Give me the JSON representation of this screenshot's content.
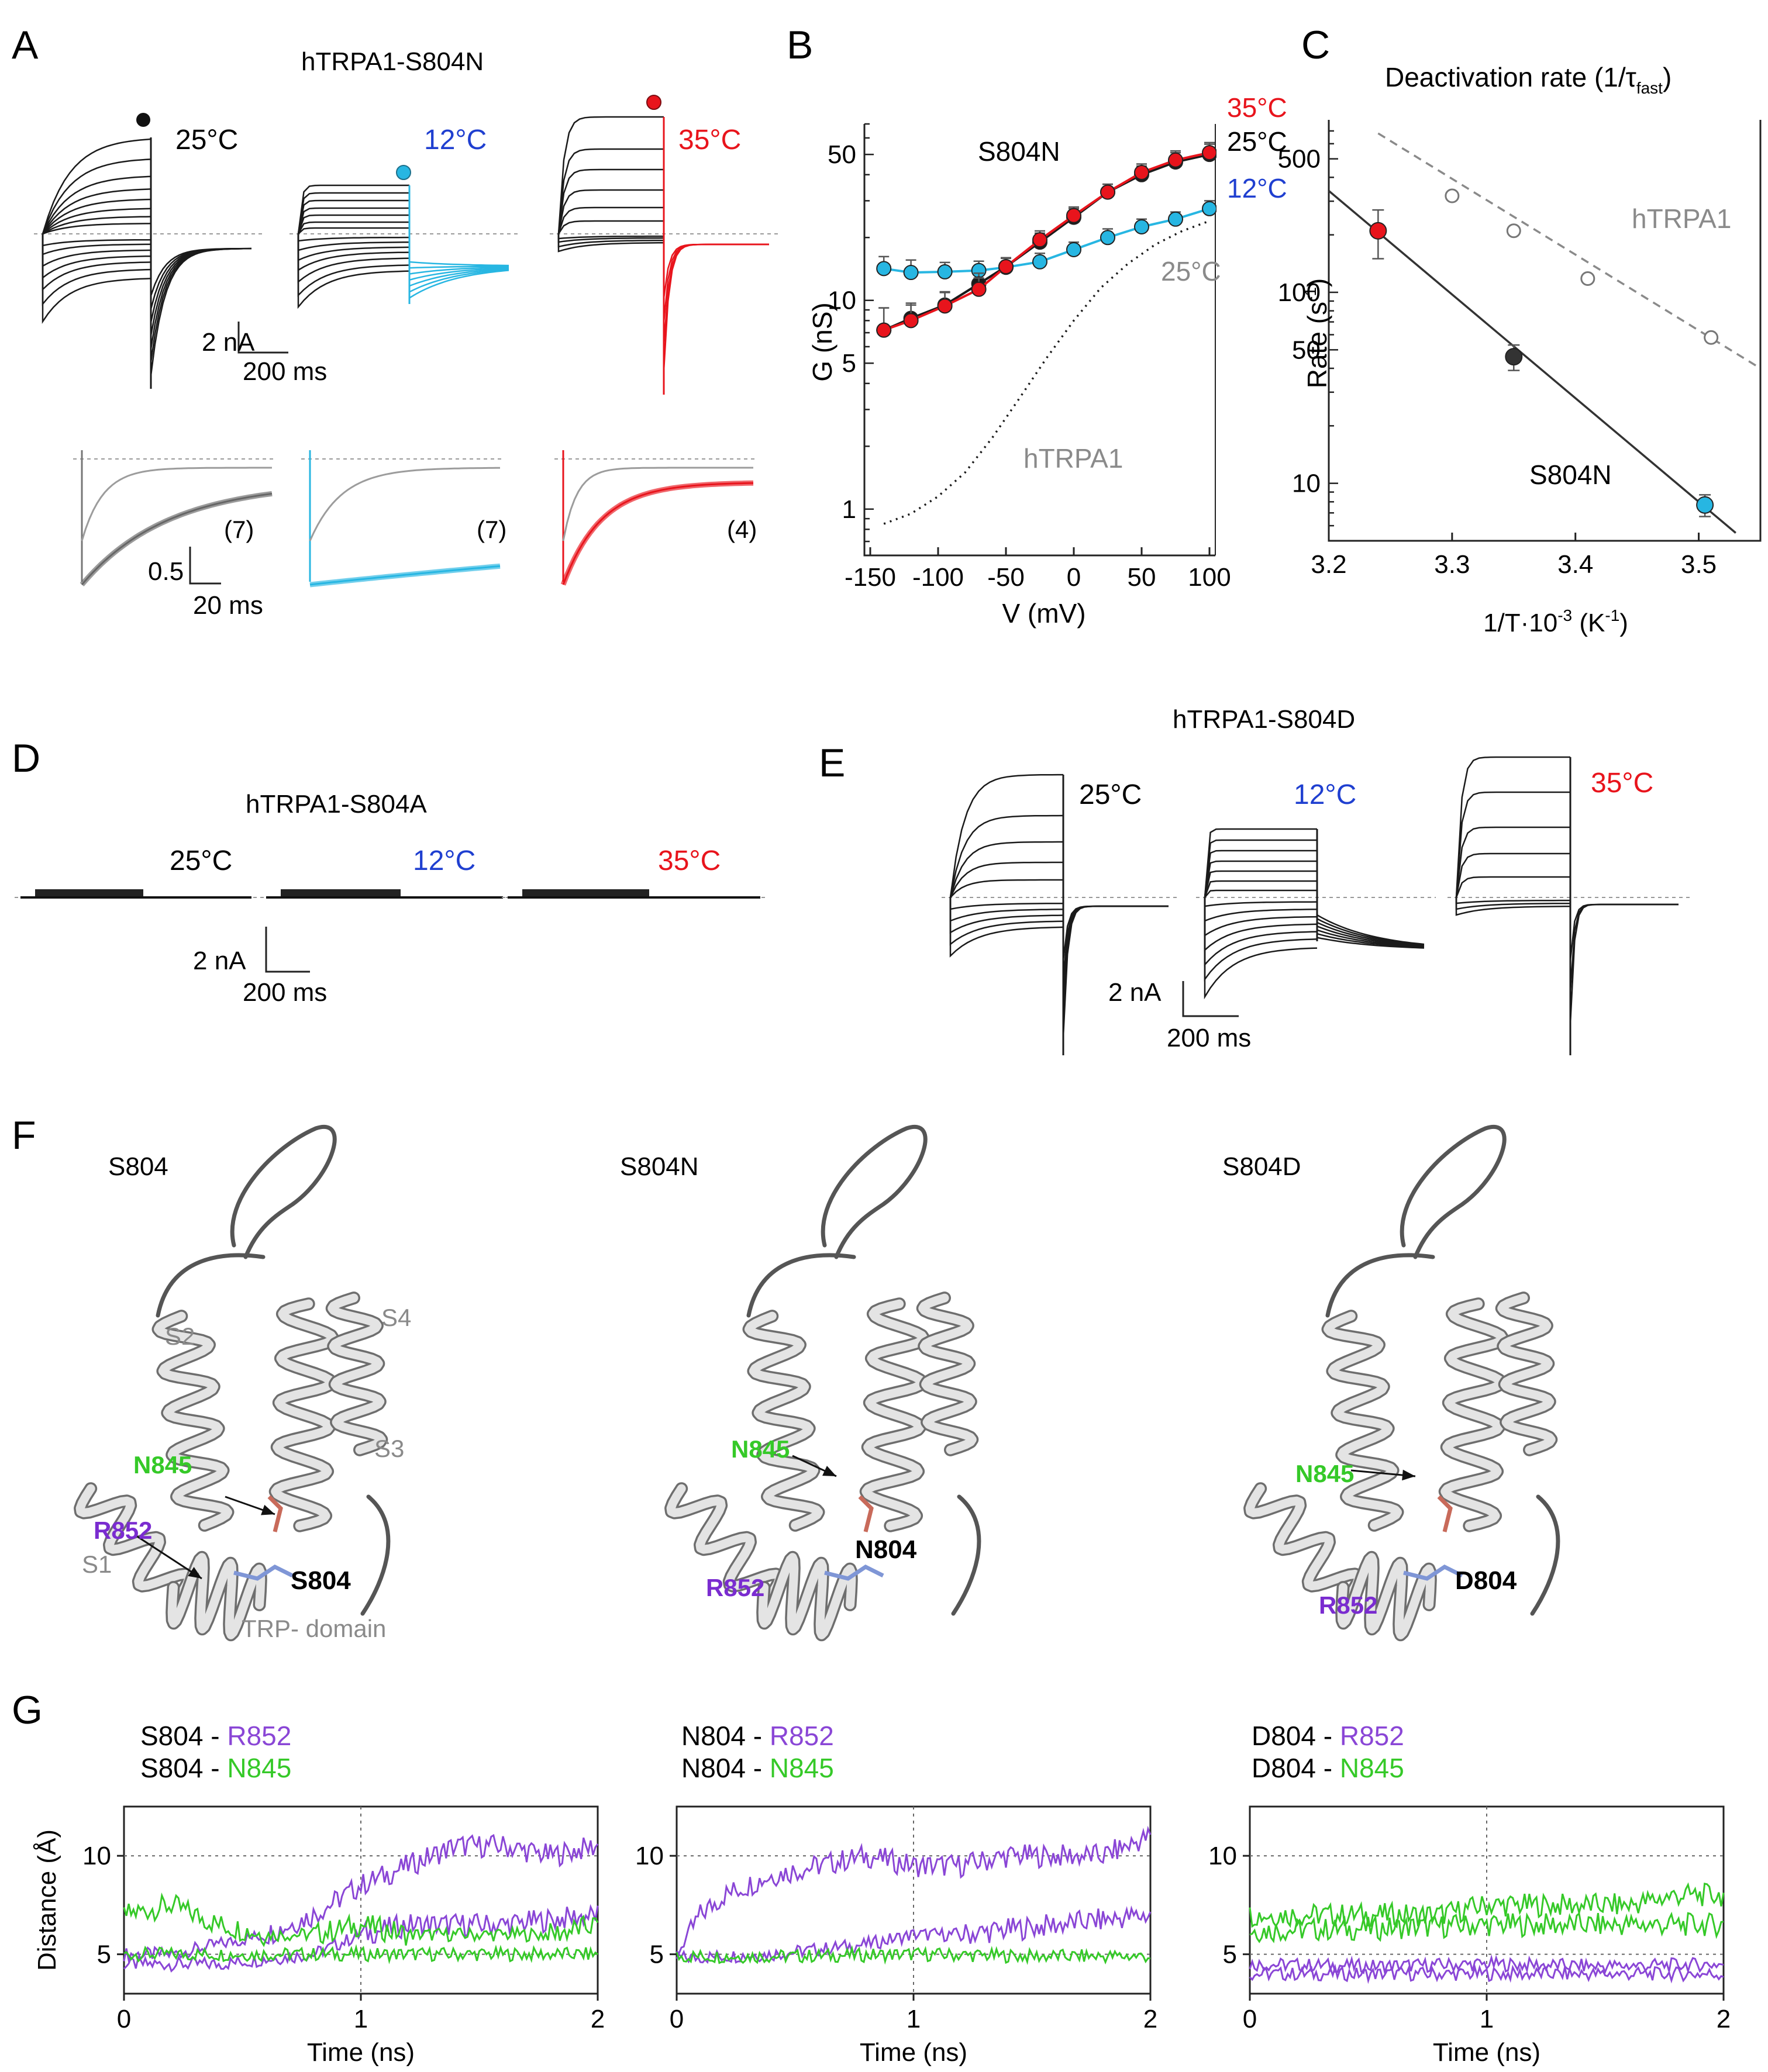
{
  "panels": {
    "A": {
      "letter": "A",
      "title": "hTRPA1-S804N",
      "temps": [
        "25°C",
        "12°C",
        "35°C"
      ],
      "scale_top": {
        "current": "2 nA",
        "time": "200 ms"
      },
      "counts": [
        "(7)",
        "(7)",
        "(4)"
      ],
      "scale_bottom": {
        "current": "0.5",
        "time": "20 ms"
      }
    },
    "B": {
      "letter": "B",
      "label_mutant": "S804N",
      "label_wt": "hTRPA1",
      "label_wt_temp": "25°C",
      "legend": [
        "35°C",
        "25°C",
        "12°C"
      ]
    },
    "C": {
      "letter": "C",
      "title_main": "Deactivation rate (1/τ",
      "title_sub": "fast",
      "title_close": ")",
      "label_wt": "hTRPA1",
      "label_mutant": "S804N"
    },
    "D": {
      "letter": "D",
      "title": "hTRPA1-S804A",
      "temps": [
        "25°C",
        "12°C",
        "35°C"
      ],
      "scale": {
        "current": "2 nA",
        "time": "200 ms"
      }
    },
    "E": {
      "letter": "E",
      "title": "hTRPA1-S804D",
      "temps": [
        "25°C",
        "12°C",
        "35°C"
      ],
      "scale": {
        "current": "2 nA",
        "time": "200 ms"
      }
    },
    "F": {
      "letter": "F",
      "structures": [
        {
          "title": "S804",
          "labels": [
            "S2",
            "S4",
            "S3",
            "S1",
            "TRP- domain"
          ],
          "n845": "N845",
          "r852": "R852",
          "site": "S804"
        },
        {
          "title": "S804N",
          "n845": "N845",
          "r852": "R852",
          "site": "N804"
        },
        {
          "title": "S804D",
          "n845": "N845",
          "r852": "R852",
          "site": "D804"
        }
      ]
    },
    "G": {
      "letter": "G",
      "ylabel": "Distance (Å)",
      "xlabel": "Time (ns)",
      "yticks": [
        "5",
        "10"
      ],
      "xticks": [
        "0",
        "1",
        "2"
      ],
      "plots": [
        {
          "res": "S804",
          "sep": " - ",
          "partner1": "R852",
          "partner2": "N845"
        },
        {
          "res": "N804",
          "sep": " - ",
          "partner1": "R852",
          "partner2": "N845"
        },
        {
          "res": "D804",
          "sep": " - ",
          "partner1": "R852",
          "partner2": "N845"
        }
      ]
    }
  },
  "colors": {
    "cold": "#1f3fd0",
    "hot": "#e8141c",
    "cyan": "#27b6e2",
    "purple": "#8a46d6",
    "purple_label": "#7a2cd0",
    "green": "#35c928",
    "gray": "#8a8a8a"
  },
  "chart_data": [
    {
      "type": "scatter",
      "panel": "B",
      "xlabel": "V (mV)",
      "ylabel": "G (nS)",
      "yscale": "log",
      "xlim": [
        -150,
        100
      ],
      "ylim": [
        0.6,
        70
      ],
      "xticks": [
        -150,
        -100,
        -50,
        0,
        50,
        100
      ],
      "xtick_labels": [
        "-150",
        "-100",
        "-50",
        "0",
        "50",
        "100"
      ],
      "yticks": [
        1,
        5,
        10,
        50
      ],
      "x": [
        -140,
        -120,
        -95,
        -70,
        -50,
        -25,
        0,
        25,
        50,
        75,
        100
      ],
      "series": [
        {
          "name": "12°C",
          "color": "#27b6e2",
          "values": [
            14.2,
            13.6,
            13.7,
            13.9,
            14.4,
            15.3,
            17.5,
            20,
            22.5,
            24.5,
            27.5
          ],
          "errors": [
            2,
            2,
            1.5,
            1.5,
            1.5,
            1.5,
            1.5,
            2,
            2,
            2,
            2.5
          ]
        },
        {
          "name": "25°C",
          "color": "#1a1a1a",
          "values": [
            7.2,
            8.2,
            9.5,
            12,
            14.5,
            19,
            25,
            33,
            40,
            46,
            50
          ],
          "errors": [
            2,
            1.5,
            1.5,
            1.5,
            1.5,
            2,
            2.5,
            3,
            4,
            5,
            6
          ]
        },
        {
          "name": "35°C",
          "color": "#e8141c",
          "values": [
            7.2,
            8,
            9.4,
            11.3,
            14.5,
            19.5,
            25.5,
            33,
            41,
            47,
            51
          ],
          "errors": [
            2,
            1.5,
            1.5,
            1.5,
            1.5,
            2,
            2.5,
            3,
            4,
            5,
            6
          ]
        },
        {
          "name": "hTRPA1 25°C",
          "color": "#1a1a1a",
          "style": "dotted",
          "x": [
            -140,
            -120,
            -100,
            -80,
            -60,
            -40,
            -20,
            0,
            20,
            40,
            60,
            80,
            100
          ],
          "values": [
            0.85,
            0.95,
            1.15,
            1.5,
            2.2,
            3.4,
            5.3,
            8,
            11.5,
            15,
            18.5,
            21.5,
            24
          ]
        }
      ]
    },
    {
      "type": "scatter",
      "panel": "C",
      "xlabel": "1/T·10",
      "xlabel_sup": "-3",
      "xlabel_tail": " (K",
      "xlabel_sup2": "-1",
      "xlabel_end": ")",
      "ylabel": "Rate (s",
      "ylabel_sup": "-1",
      "ylabel_end": ")",
      "yscale": "log",
      "xlim": [
        3.2,
        3.55
      ],
      "ylim": [
        5,
        800
      ],
      "xticks": [
        3.2,
        3.3,
        3.4,
        3.5
      ],
      "xtick_labels": [
        "3.2",
        "3.3",
        "3.4",
        "3.5"
      ],
      "yticks": [
        10,
        50,
        100,
        500
      ],
      "series": [
        {
          "name": "hTRPA1",
          "marker": "open",
          "color": "#8a8a8a",
          "x": [
            3.3,
            3.35,
            3.41,
            3.51
          ],
          "values": [
            320,
            210,
            118,
            58
          ]
        },
        {
          "name": "S804N",
          "marker": "filled",
          "x": [
            3.24,
            3.35,
            3.505
          ],
          "values": [
            210,
            46,
            7.7
          ],
          "colors": [
            "#e8141c",
            "#333333",
            "#27b6e2"
          ],
          "errors": [
            60,
            7,
            1
          ]
        }
      ],
      "fits": [
        {
          "name": "hTRPA1 fit",
          "style": "dashed",
          "color": "#8a8a8a",
          "x": [
            3.24,
            3.55
          ],
          "values": [
            680,
            40
          ]
        },
        {
          "name": "S804N fit",
          "style": "solid",
          "color": "#333333",
          "x": [
            3.2,
            3.53
          ],
          "values": [
            340,
            5.5
          ]
        }
      ]
    },
    {
      "type": "line",
      "panel": "G",
      "xlabel": "Time (ns)",
      "ylabel": "Distance (Å)",
      "xlim": [
        0,
        2
      ],
      "ylim": [
        3,
        12.5
      ],
      "plots": [
        {
          "name": "S804",
          "series": [
            {
              "name": "S804 - R852",
              "color": "#8a46d6",
              "x": [
                0,
                0.2,
                0.4,
                0.6,
                0.8,
                1.0,
                1.2,
                1.4,
                1.6,
                1.8,
                2.0
              ],
              "values": [
                5,
                5,
                5.5,
                6,
                7,
                8.5,
                9.5,
                10.5,
                10.5,
                10,
                10.5
              ]
            },
            {
              "name": "S804 - R852",
              "color": "#8a46d6",
              "x": [
                0,
                0.4,
                0.8,
                1.0,
                1.2,
                1.6,
                2.0
              ],
              "values": [
                4.5,
                4.5,
                5,
                6,
                6.5,
                6.5,
                7
              ]
            },
            {
              "name": "S804 - N845",
              "color": "#35c928",
              "x": [
                0,
                0.2,
                0.4,
                0.6,
                0.8,
                1.0,
                1.2,
                1.4,
                1.6,
                1.8,
                2.0
              ],
              "values": [
                7,
                7.5,
                6.5,
                6,
                6,
                6.5,
                6,
                6,
                6,
                6,
                6.5
              ]
            },
            {
              "name": "S804 - N845",
              "color": "#35c928",
              "x": [
                0,
                0.5,
                1.0,
                1.5,
                2.0
              ],
              "values": [
                5,
                5,
                5,
                5,
                5
              ]
            }
          ]
        },
        {
          "name": "N804",
          "series": [
            {
              "name": "N804 - R852",
              "color": "#8a46d6",
              "x": [
                0,
                0.1,
                0.2,
                0.4,
                0.6,
                0.8,
                1.0,
                1.2,
                1.4,
                1.6,
                1.8,
                2.0
              ],
              "values": [
                5,
                7,
                8,
                9,
                9.5,
                10,
                9.5,
                9.5,
                10,
                10,
                10,
                11
              ]
            },
            {
              "name": "N804 - R852",
              "color": "#8a46d6",
              "x": [
                0,
                0.4,
                0.8,
                1.0,
                1.2,
                1.6,
                2.0
              ],
              "values": [
                4.8,
                5,
                5.5,
                6,
                6,
                6.5,
                7
              ]
            },
            {
              "name": "N804 - N845",
              "color": "#35c928",
              "x": [
                0,
                0.5,
                1.0,
                1.5,
                2.0
              ],
              "values": [
                4.9,
                4.9,
                5,
                4.9,
                4.9
              ]
            }
          ]
        },
        {
          "name": "D804",
          "series": [
            {
              "name": "D804 - N845",
              "color": "#35c928",
              "x": [
                0,
                0.2,
                0.4,
                0.6,
                0.8,
                1.0,
                1.2,
                1.4,
                1.6,
                1.8,
                2.0
              ],
              "values": [
                7,
                7,
                7,
                7,
                7,
                7.5,
                7.5,
                7.5,
                7.5,
                8,
                8
              ]
            },
            {
              "name": "D804 - N845",
              "color": "#35c928",
              "x": [
                0,
                0.5,
                1.0,
                1.5,
                2.0
              ],
              "values": [
                6.2,
                6.3,
                6.5,
                6.5,
                6.5
              ]
            },
            {
              "name": "D804 - R852",
              "color": "#8a46d6",
              "x": [
                0,
                0.5,
                1.0,
                1.5,
                2.0
              ],
              "values": [
                4.5,
                4.4,
                4.5,
                4.4,
                4.5
              ]
            },
            {
              "name": "D804 - R852",
              "color": "#8a46d6",
              "x": [
                0,
                0.5,
                1.0,
                1.5,
                2.0
              ],
              "values": [
                4,
                4,
                4,
                4,
                4
              ]
            }
          ]
        }
      ]
    }
  ]
}
